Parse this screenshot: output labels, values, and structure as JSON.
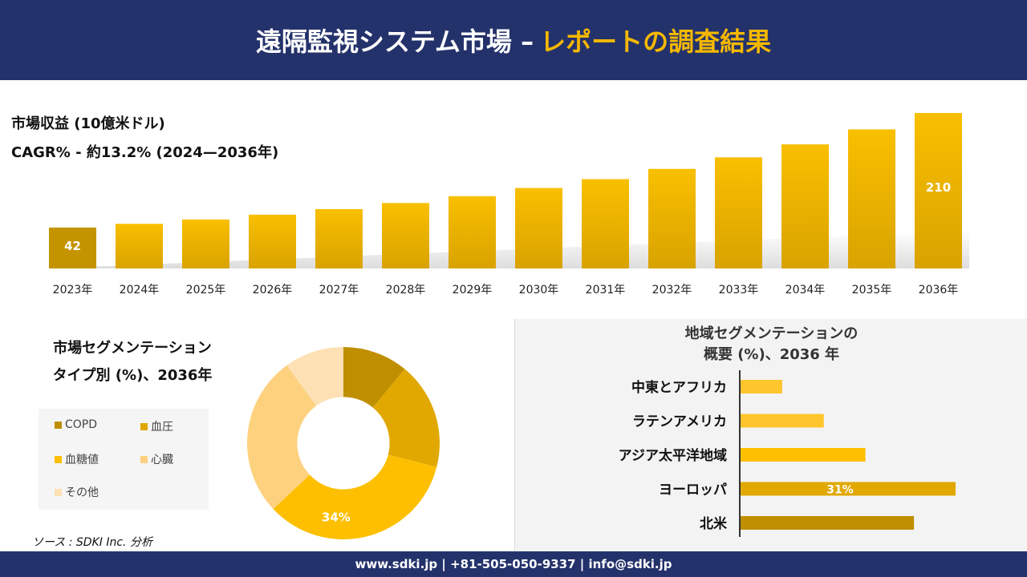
{
  "header": {
    "title": "遠隔監視システム市場 –",
    "title_accent": "レポートの調査結果"
  },
  "revenue": {
    "label1": "市場収益 (10億米ドル)",
    "label2": "CAGR% - 約13.2% (2024—2036年)"
  },
  "chart_data": [
    {
      "type": "bar",
      "categories": [
        "2023年",
        "2024年",
        "2025年",
        "2026年",
        "2027年",
        "2028年",
        "2029年",
        "2030年",
        "2031年",
        "2032年",
        "2033年",
        "2034年",
        "2035年",
        "2036年"
      ],
      "values": [
        42,
        47.5,
        53.8,
        60.9,
        69,
        78,
        88,
        100,
        113,
        128,
        145,
        164,
        186,
        210
      ],
      "data_labels": {
        "0": "42",
        "13": "210"
      },
      "colors": [
        "#c49400",
        "#f5b800"
      ]
    },
    {
      "type": "pie",
      "title": "市場セグメンテーション タイプ別 (%)、2036年",
      "categories": [
        "COPD",
        "血圧",
        "血糖値",
        "心臓",
        "その他"
      ],
      "values": [
        11,
        18,
        34,
        27,
        10
      ],
      "colors": [
        "#c08f00",
        "#e0a800",
        "#fdbf00",
        "#fdd17e",
        "#fde0b4"
      ],
      "data_labels": {
        "2": "34%"
      },
      "hole": 0.48
    },
    {
      "type": "bar",
      "orientation": "horizontal",
      "title": "地域セグメンテーションの概要 (%)、2036 年",
      "categories": [
        "中東とアフリカ",
        "ラテンアメリカ",
        "アジア太平洋地域",
        "ヨーロッパ",
        "北米"
      ],
      "values": [
        6,
        12,
        18,
        31,
        25
      ],
      "colors": [
        "#fec52c",
        "#fec52c",
        "#fdbf00",
        "#e0a800",
        "#c08f00"
      ],
      "data_labels": {
        "3": "31%"
      }
    }
  ],
  "pie_title": {
    "line1": "市場セグメンテーション",
    "line2": "タイプ別 (%)、2036年"
  },
  "region_title": {
    "line1": "地域セグメンテーションの",
    "line2": "概要 (%)、2036 年"
  },
  "source": "ソース : SDKI Inc. 分析",
  "footer": "www.sdki.jp | +81-505-050-9337 | info@sdki.jp"
}
